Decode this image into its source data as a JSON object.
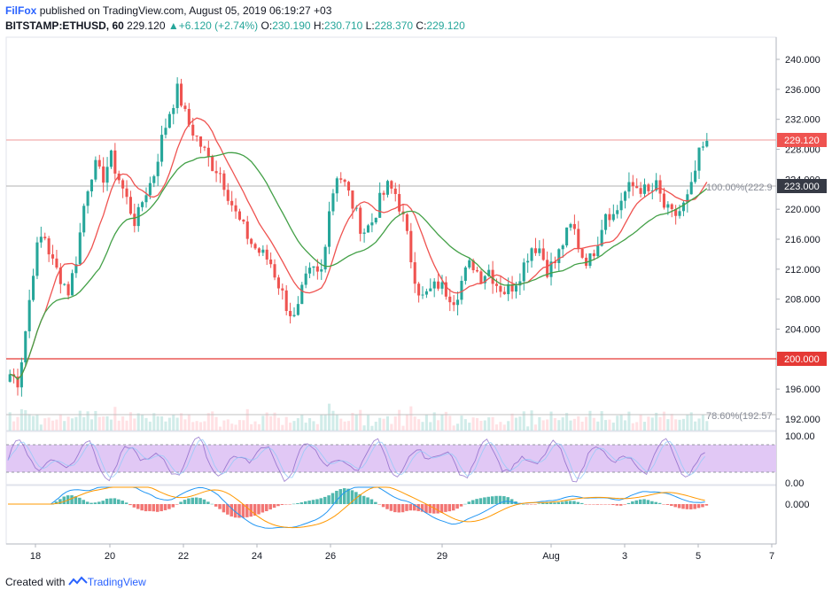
{
  "header": {
    "publisher": "FilFox",
    "published_text": "published on TradingView.com, August 05, 2019 06:19:27 +03",
    "symbol": "BITSTAMP:ETHUSD, 60",
    "last": "229.120",
    "change_arrow": "▲",
    "change": "+6.120 (+2.74%)",
    "o_label": "O:",
    "o_value": "230.190",
    "h_label": "H:",
    "h_value": "230.710",
    "l_label": "L:",
    "l_value": "228.370",
    "c_label": "C:",
    "c_value": "229.120"
  },
  "price_axis": {
    "ticks": [
      "240.000",
      "236.000",
      "232.000",
      "228.000",
      "224.000",
      "220.000",
      "216.000",
      "212.000",
      "208.000",
      "204.000",
      "200.000",
      "196.000",
      "192.000"
    ],
    "tag_last": "229.120",
    "tag_level": "223.000",
    "tag_support": "200.000"
  },
  "fib": {
    "level_100": "100.00%(222.9",
    "level_786": "78.60%(192.57"
  },
  "rsi_axis": {
    "top": "100.00",
    "bottom": "0.00"
  },
  "macd_axis": {
    "zero": "0.000"
  },
  "time_axis": [
    "18",
    "20",
    "22",
    "24",
    "26",
    "29",
    "Aug",
    "3",
    "5",
    "7"
  ],
  "colors": {
    "up": "#26a69a",
    "down": "#ef5350",
    "ma_fast": "#ef5350",
    "ma_slow": "#43a047",
    "support": "#e53935",
    "level_tag": "#363a45",
    "rsi_band": "#e1c8f5"
  },
  "footer": {
    "created_with": "Created with",
    "brand": "TradingView"
  },
  "chart_data": {
    "type": "candlestick",
    "ylim": [
      190,
      242
    ],
    "levels": [
      229.12,
      223.0,
      200.0
    ],
    "fib_levels": [
      {
        "label": "100.00%",
        "value": 222.9
      },
      {
        "label": "78.60%",
        "value": 192.57
      }
    ],
    "close_path": [
      198,
      197,
      205,
      214,
      217,
      213,
      211,
      209,
      214,
      222,
      226,
      224,
      227,
      224,
      221,
      218,
      222,
      224,
      229,
      233,
      236,
      232,
      230,
      228,
      226,
      225,
      222,
      219,
      217,
      215,
      214,
      213,
      210,
      207,
      205,
      210,
      212,
      211,
      220,
      225,
      223,
      220,
      217,
      218,
      221,
      223,
      222,
      218,
      212,
      208,
      209,
      210,
      209,
      208,
      211,
      213,
      211,
      212,
      210,
      209,
      210,
      212,
      215,
      215,
      212,
      213,
      216,
      218,
      214,
      213,
      216,
      220,
      219,
      222,
      223,
      223,
      222,
      223,
      220,
      219,
      220,
      222,
      227,
      229
    ]
  }
}
